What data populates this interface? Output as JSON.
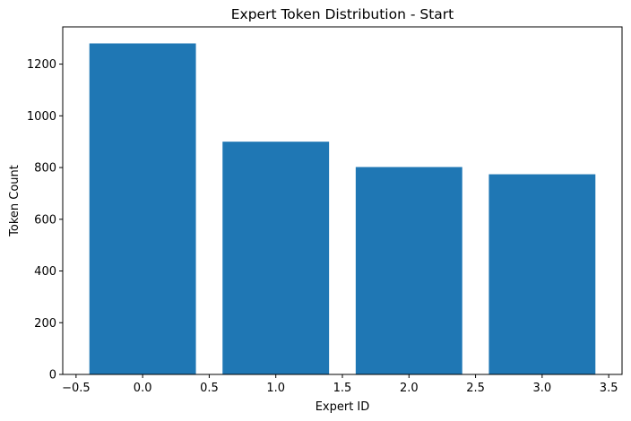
{
  "chart_data": {
    "type": "bar",
    "title": "Expert Token Distribution - Start",
    "xlabel": "Expert ID",
    "ylabel": "Token Count",
    "x": [
      0,
      1,
      2,
      3
    ],
    "values": [
      1280,
      900,
      802,
      774
    ],
    "bar_width": 0.8,
    "bar_color": "#1f77b4",
    "xlim": [
      -0.6,
      3.6
    ],
    "ylim": [
      0,
      1344
    ],
    "xticks": [
      -0.5,
      0.0,
      0.5,
      1.0,
      1.5,
      2.0,
      2.5,
      3.0,
      3.5
    ],
    "xtick_labels": [
      "−0.5",
      "0.0",
      "0.5",
      "1.0",
      "1.5",
      "2.0",
      "2.5",
      "3.0",
      "3.5"
    ],
    "yticks": [
      0,
      200,
      400,
      600,
      800,
      1000,
      1200
    ],
    "ytick_labels": [
      "0",
      "200",
      "400",
      "600",
      "800",
      "1000",
      "1200"
    ],
    "grid": false,
    "legend": false
  }
}
